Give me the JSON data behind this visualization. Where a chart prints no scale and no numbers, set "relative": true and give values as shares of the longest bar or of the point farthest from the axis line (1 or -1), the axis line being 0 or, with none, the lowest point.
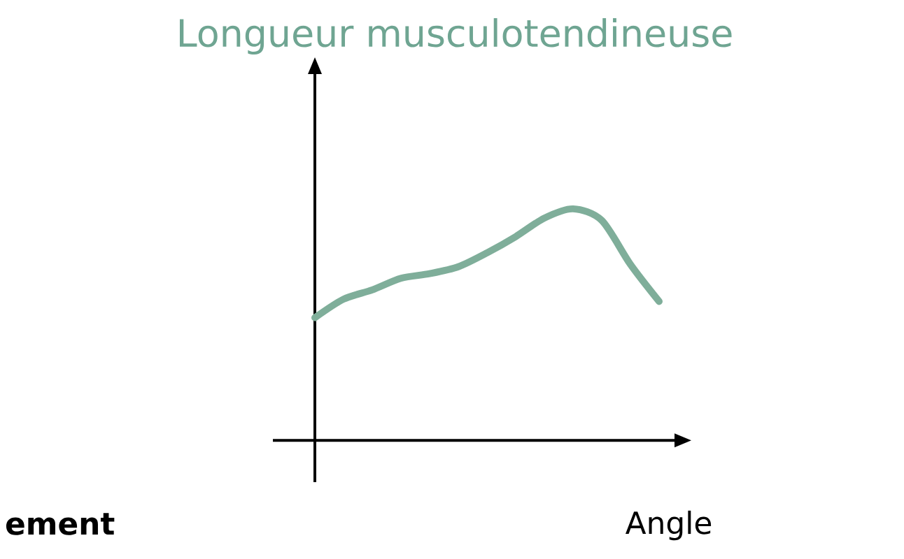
{
  "chart_data": {
    "type": "line",
    "title": "Longueur musculotendineuse",
    "xlabel": "Angle",
    "annotations": [
      "ement"
    ],
    "relative": true,
    "color": "#7fae9a",
    "categories": [
      null,
      null,
      null,
      null,
      null,
      null,
      null,
      null,
      null,
      null,
      null,
      null,
      null
    ],
    "values": [
      0.53,
      0.61,
      0.65,
      0.7,
      0.72,
      0.75,
      0.81,
      0.88,
      0.96,
      1,
      0.95,
      0.76,
      0.6
    ]
  }
}
